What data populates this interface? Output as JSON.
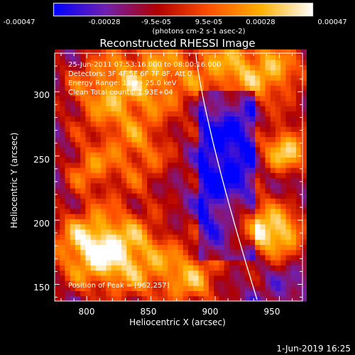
{
  "chart_data": {
    "type": "heatmap",
    "title": "Reconstructed RHESSI Image",
    "xlabel": "Heliocentric X (arcsec)",
    "ylabel": "Heliocentric Y (arcsec)",
    "xlim": [
      775,
      968
    ],
    "ylim": [
      137,
      330
    ],
    "x_ticks": [
      "800",
      "850",
      "900",
      "950"
    ],
    "y_ticks": [
      "150",
      "200",
      "250",
      "300"
    ],
    "colorbar": {
      "range": [
        -0.00047,
        0.00047
      ],
      "tick_labels": [
        "-0.00047",
        "-0.00028",
        "-9.5e-05",
        "9.5e-05",
        "0.00028",
        "0.00047"
      ],
      "unit_text": "(photons cm-2 s-1 asec-2)",
      "colormap": [
        "#0000ff",
        "#7020b0",
        "#b00000",
        "#ff5000",
        "#ffb000",
        "#ffffff"
      ]
    },
    "annotations": {
      "time": "25-Jun-2011 07:53:16.000 to 08:00:16.000",
      "detectors": "Detectors: 3F 4F 5F 6F 7F 8F, Att 0",
      "energy": "Energy Range: 12.0 - 25.0 keV",
      "clean": "Clean     Total counts: 1.93E+04"
    },
    "peak_position": "Position of Peak = [962,257]",
    "limb_color": "#ffffff"
  },
  "footer": {
    "timestamp": "1-Jun-2019 16:25"
  }
}
